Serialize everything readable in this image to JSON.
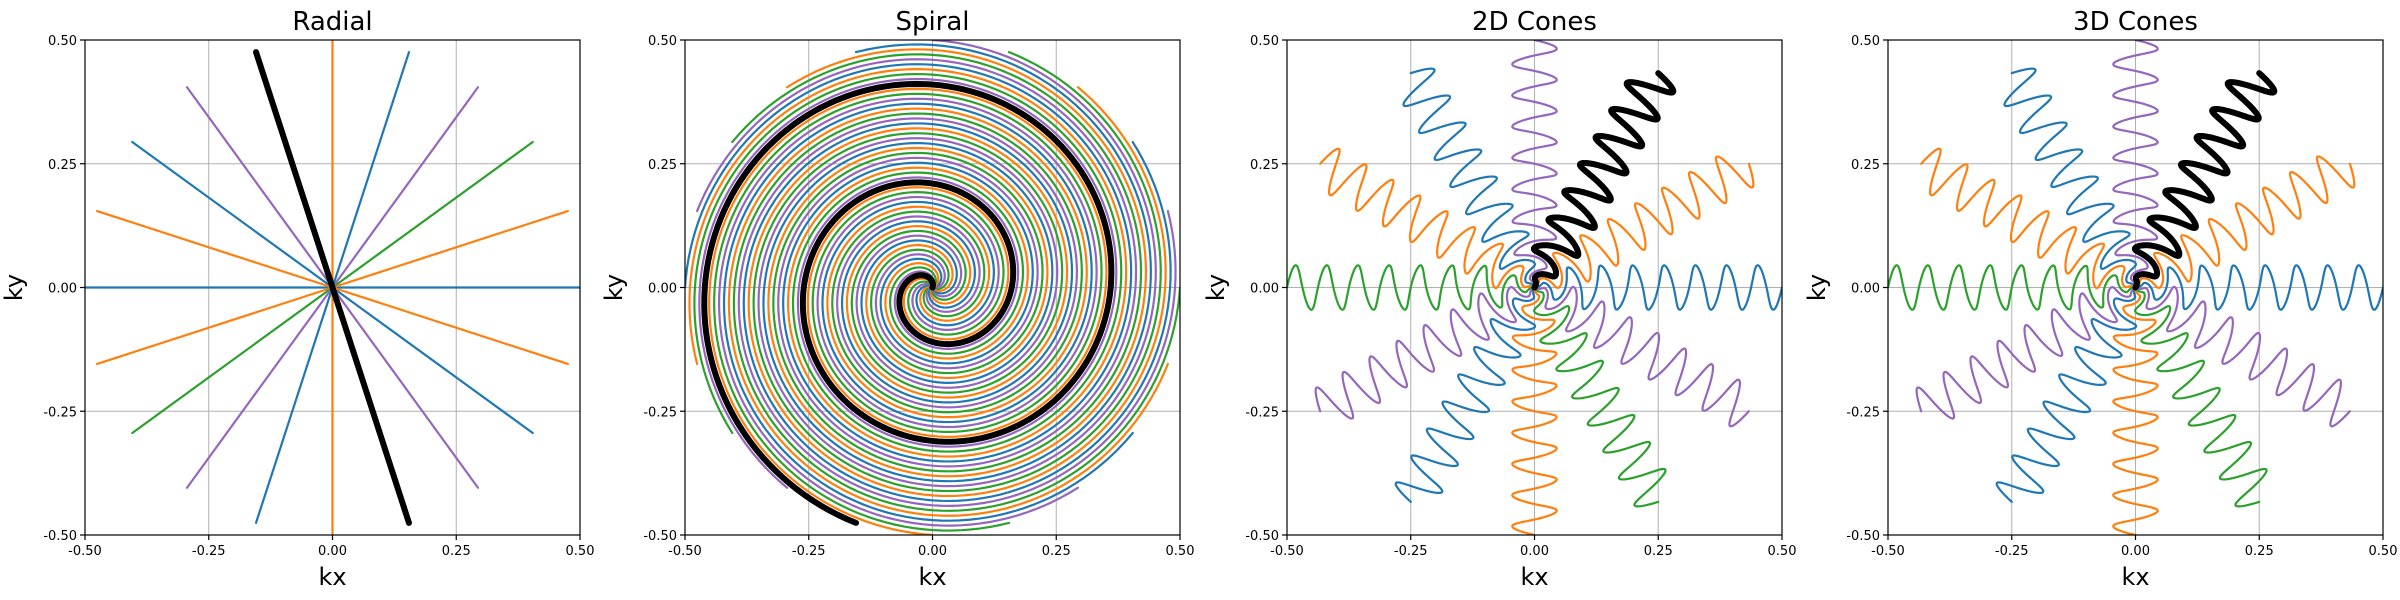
{
  "colors": {
    "blue": "#1f77b4",
    "orange": "#ff7f0e",
    "green": "#2ca02c",
    "purple": "#9467bd",
    "black": "#000000",
    "grid": "#b0b0b0"
  },
  "chart_data": [
    {
      "type": "line",
      "title": "Radial",
      "xlabel": "kx",
      "ylabel": "ky",
      "xlim": [
        -0.5,
        0.5
      ],
      "ylim": [
        -0.5,
        0.5
      ],
      "xticks": [
        "-0.50",
        "-0.25",
        "0.00",
        "0.25",
        "0.50"
      ],
      "yticks": [
        "-0.50",
        "-0.25",
        "0.00",
        "0.25",
        "0.50"
      ],
      "grid": true,
      "trajectory": "radial",
      "interleaves": 10,
      "radius": 0.5,
      "highlighted_interleave_color": "black"
    },
    {
      "type": "line",
      "title": "Spiral",
      "xlabel": "kx",
      "ylabel": "ky",
      "xlim": [
        -0.5,
        0.5
      ],
      "ylim": [
        -0.5,
        0.5
      ],
      "xticks": [
        "-0.50",
        "-0.25",
        "0.00",
        "0.25",
        "0.50"
      ],
      "yticks": [
        "-0.50",
        "-0.25",
        "0.00",
        "0.25",
        "0.50"
      ],
      "grid": true,
      "trajectory": "spiral",
      "interleaves": 20,
      "turns": 2.5,
      "radius": 0.5,
      "highlighted_interleave_color": "black"
    },
    {
      "type": "line",
      "title": "2D Cones",
      "xlabel": "kx",
      "ylabel": "ky",
      "xlim": [
        -0.5,
        0.5
      ],
      "ylim": [
        -0.5,
        0.5
      ],
      "xticks": [
        "-0.50",
        "-0.25",
        "0.00",
        "0.25",
        "0.50"
      ],
      "yticks": [
        "-0.50",
        "-0.25",
        "0.00",
        "0.25",
        "0.50"
      ],
      "grid": true,
      "trajectory": "cones",
      "interleaves": 12,
      "oscillations": 8,
      "radius": 0.5,
      "highlighted_interleave_color": "black"
    },
    {
      "type": "line",
      "title": "3D Cones",
      "xlabel": "kx",
      "ylabel": "ky",
      "xlim": [
        -0.5,
        0.5
      ],
      "ylim": [
        -0.5,
        0.5
      ],
      "xticks": [
        "-0.50",
        "-0.25",
        "0.00",
        "0.25",
        "0.50"
      ],
      "yticks": [
        "-0.50",
        "-0.25",
        "0.00",
        "0.25",
        "0.50"
      ],
      "grid": true,
      "trajectory": "cones",
      "interleaves": 12,
      "oscillations": 8,
      "radius": 0.5,
      "highlighted_interleave_color": "black"
    }
  ]
}
